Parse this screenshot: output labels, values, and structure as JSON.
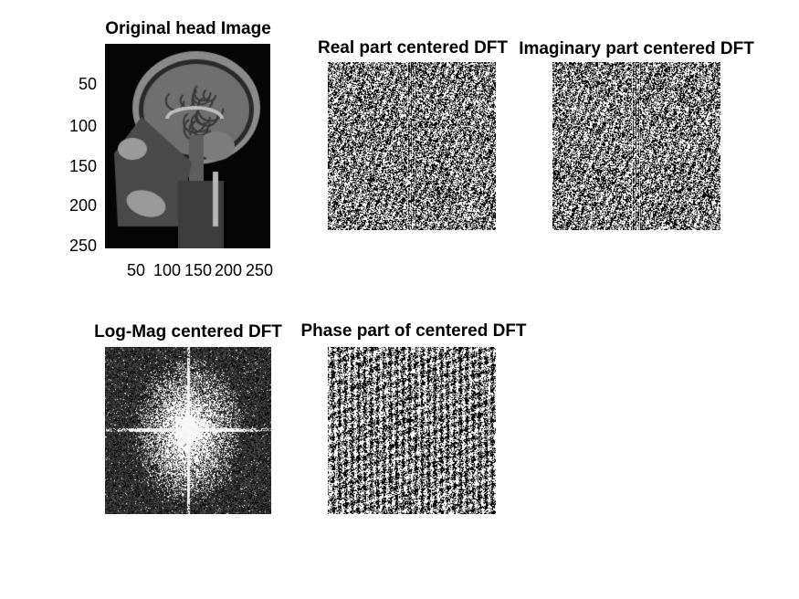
{
  "figure": {
    "panels": [
      {
        "id": "original",
        "title": "Original head Image",
        "yticks": [
          "50",
          "100",
          "150",
          "200",
          "250"
        ],
        "xticks": [
          "50",
          "100",
          "150",
          "200",
          "250"
        ]
      },
      {
        "id": "real",
        "title": "Real part centered DFT"
      },
      {
        "id": "imag",
        "title": "Imaginary part centered DFT"
      },
      {
        "id": "logmag",
        "title": "Log-Mag centered DFT"
      },
      {
        "id": "phase",
        "title": "Phase part of centered DFT"
      }
    ]
  },
  "colors": {
    "background": "#ffffff",
    "axes_fill": "#000000",
    "text": "#000000"
  }
}
